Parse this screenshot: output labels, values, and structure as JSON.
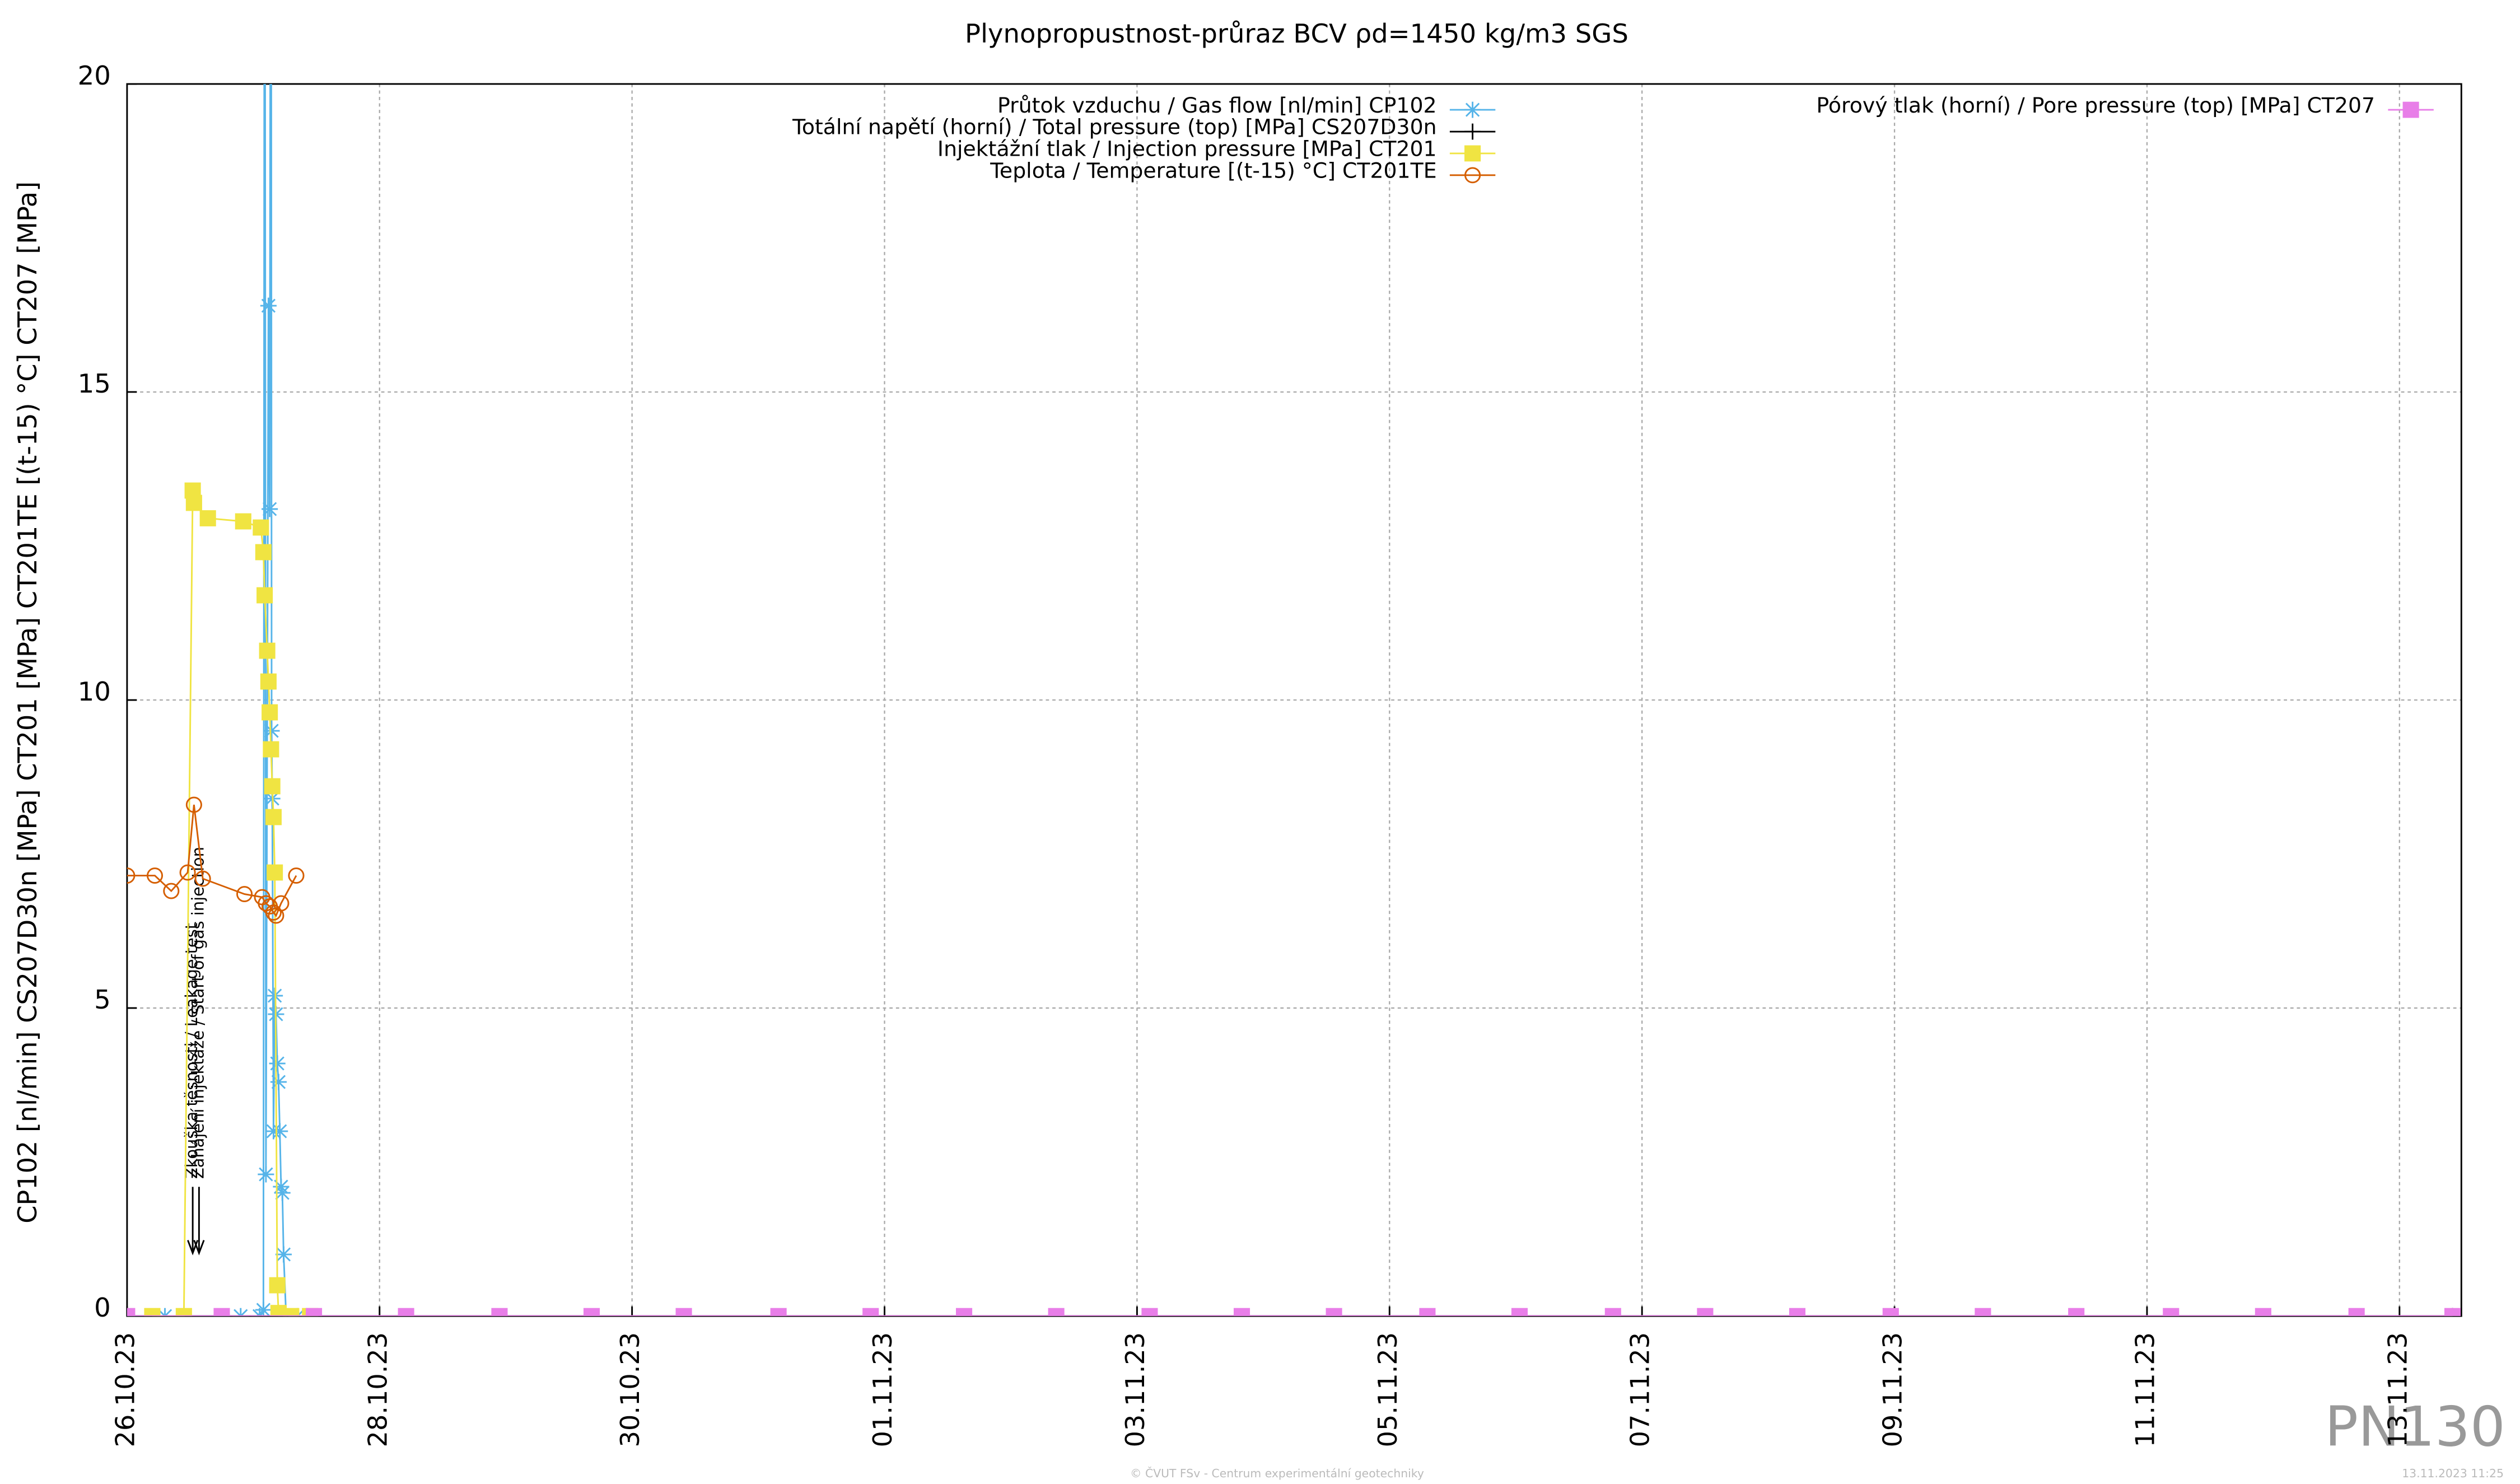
{
  "chart_data": {
    "type": "line",
    "title": "Plynopropustnost-průraz BCV ρd=1450 kg/m3 SGS",
    "y_label": "CP102 [nl/min] CS207D30n [MPa] CT201 [MPa] CT201TE [(t-15) °C] CT207 [MPa]",
    "xlim": [
      0,
      18.49
    ],
    "xticks": [
      {
        "value": 0,
        "label": "26.10.23"
      },
      {
        "value": 2,
        "label": "28.10.23"
      },
      {
        "value": 4,
        "label": "30.10.23"
      },
      {
        "value": 6,
        "label": "01.11.23"
      },
      {
        "value": 8,
        "label": "03.11.23"
      },
      {
        "value": 10,
        "label": "05.11.23"
      },
      {
        "value": 12,
        "label": "07.11.23"
      },
      {
        "value": 14,
        "label": "09.11.23"
      },
      {
        "value": 16,
        "label": "11.11.23"
      },
      {
        "value": 18,
        "label": "13.11.23"
      }
    ],
    "ylim": [
      0,
      20
    ],
    "yticks": [
      0,
      5,
      10,
      15,
      20
    ],
    "grid": true,
    "annotations": [
      {
        "text": "Zkouška těsnosti / Leakage test",
        "x": 0.52
      },
      {
        "text": "Zahájení injektáže / Start of gas injection",
        "x": 0.57
      }
    ],
    "series": [
      {
        "name": "Průtok vzduchu / Gas flow [nl/min] CP102",
        "color": "#56b4e9",
        "marker": "asterisk",
        "legend": "top-center",
        "x": [
          0,
          0.3,
          0.9,
          1.05,
          1.08,
          1.09,
          1.1,
          1.12,
          1.13,
          1.14,
          1.145,
          1.15,
          1.16,
          1.17,
          1.18,
          1.19,
          1.2,
          1.21,
          1.22,
          1.23,
          1.24,
          1.26,
          1.35
        ],
        "values": [
          0,
          0,
          0,
          0,
          0.1,
          30,
          2.3,
          16.4,
          13.1,
          30,
          9.5,
          8.4,
          3.0,
          5.2,
          4.9,
          4.1,
          3.8,
          3.0,
          2.1,
          2.0,
          1.0,
          0,
          0
        ]
      },
      {
        "name": "Totální napětí (horní) / Total pressure (top) [MPa] CS207D30n",
        "color": "#000000",
        "marker": "plus",
        "legend": "top-center",
        "x": [
          0,
          18.42
        ],
        "values": [
          0,
          0
        ]
      },
      {
        "name": "Injektážní tlak / Injection pressure [MPa] CT201",
        "color": "#f0e442",
        "marker": "square",
        "legend": "top-center",
        "x": [
          0.2,
          0.45,
          0.52,
          0.53,
          0.64,
          0.92,
          1.06,
          1.08,
          1.09,
          1.11,
          1.12,
          1.13,
          1.14,
          1.15,
          1.16,
          1.17,
          1.19,
          1.2,
          1.3,
          1.45
        ],
        "values": [
          0,
          0,
          13.4,
          13.2,
          12.95,
          12.9,
          12.8,
          12.4,
          11.7,
          10.8,
          10.3,
          9.8,
          9.2,
          8.6,
          8.1,
          7.2,
          0.5,
          0.05,
          0,
          0
        ]
      },
      {
        "name": "Teplota / Temperature [(t-15) °C] CT201TE",
        "color": "#d55e00",
        "marker": "circle",
        "legend": "top-center",
        "x": [
          0,
          0.22,
          0.35,
          0.48,
          0.53,
          0.6,
          0.93,
          1.07,
          1.1,
          1.13,
          1.16,
          1.18,
          1.22,
          1.34
        ],
        "values": [
          7.15,
          7.15,
          6.9,
          7.2,
          8.3,
          7.1,
          6.85,
          6.8,
          6.7,
          6.65,
          6.55,
          6.5,
          6.7,
          7.15
        ]
      },
      {
        "name": "Pórový tlak (horní) / Pore pressure (top) [MPa] CT207",
        "color": "#e87ee8",
        "marker": "square",
        "legend": "top-right",
        "x": [
          0,
          0.75,
          1.48,
          2.21,
          2.95,
          3.68,
          4.41,
          5.16,
          5.89,
          6.63,
          7.36,
          8.1,
          8.83,
          9.56,
          10.3,
          11.03,
          11.77,
          12.5,
          13.23,
          13.97,
          14.7,
          15.44,
          16.19,
          16.92,
          17.66,
          18.42
        ],
        "values": [
          0,
          0,
          0,
          0,
          0,
          0,
          0,
          0,
          0,
          0,
          0,
          0,
          0,
          0,
          0,
          0,
          0,
          0,
          0,
          0,
          0,
          0,
          0,
          0,
          0,
          0
        ]
      }
    ],
    "watermark": "PN130",
    "footer": "© ČVUT FSv - Centrum experimentální geotechniky",
    "timestamp": "13.11.2023 11:25"
  }
}
